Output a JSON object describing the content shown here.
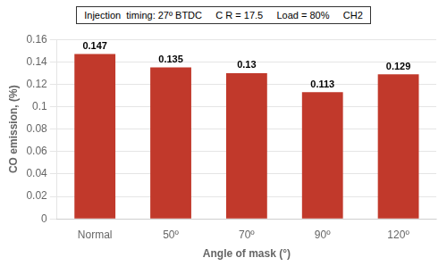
{
  "chart_data": {
    "type": "bar",
    "annotation": "Injection  timing: 27º BTDC     C R = 17.5     Load = 80%     CH2",
    "categories": [
      "Normal",
      "50º",
      "70º",
      "90º",
      "120º"
    ],
    "values": [
      0.147,
      0.135,
      0.13,
      0.113,
      0.129
    ],
    "color": "#C1392B",
    "xlabel": "Angle of mask (°)",
    "ylabel": "CO emission, (%)",
    "ylim": [
      0,
      0.16
    ],
    "yticks": [
      0,
      0.02,
      0.04,
      0.06,
      0.08,
      0.1,
      0.12,
      0.14,
      0.16
    ],
    "grid": true,
    "data_labels": true
  }
}
